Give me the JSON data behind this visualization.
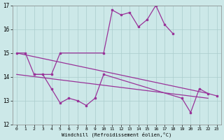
{
  "color": "#993399",
  "bgcolor": "#cce8e8",
  "grid_color": "#aacccc",
  "xlabel": "Windchill (Refroidissement éolien,°C)",
  "ylim": [
    12,
    17
  ],
  "xlim": [
    -0.5,
    23.5
  ],
  "yticks": [
    12,
    13,
    14,
    15,
    16,
    17
  ],
  "xticks": [
    0,
    1,
    2,
    3,
    4,
    5,
    6,
    7,
    8,
    9,
    10,
    11,
    12,
    13,
    14,
    15,
    16,
    17,
    18,
    19,
    20,
    21,
    22,
    23
  ],
  "line_zigzag1_x": [
    0,
    1,
    2,
    4,
    5,
    10,
    11,
    12,
    13,
    14,
    15,
    16,
    17,
    18
  ],
  "line_zigzag1_y": [
    15.0,
    15.0,
    14.1,
    14.1,
    15.0,
    15.0,
    16.8,
    16.6,
    16.7,
    16.1,
    16.4,
    17.0,
    16.2,
    15.8
  ],
  "line_zigzag2_x": [
    2,
    3,
    4,
    5,
    6,
    7,
    8,
    9,
    10,
    19,
    20,
    21,
    22,
    23
  ],
  "line_zigzag2_y": [
    14.1,
    14.1,
    13.5,
    12.9,
    13.1,
    13.0,
    12.8,
    13.1,
    14.1,
    13.1,
    12.5,
    13.5,
    13.3,
    13.2
  ],
  "reg_line1_x": [
    0,
    22
  ],
  "reg_line1_y": [
    15.0,
    13.3
  ],
  "reg_line2_x": [
    0,
    22
  ],
  "reg_line2_y": [
    14.1,
    13.1
  ]
}
